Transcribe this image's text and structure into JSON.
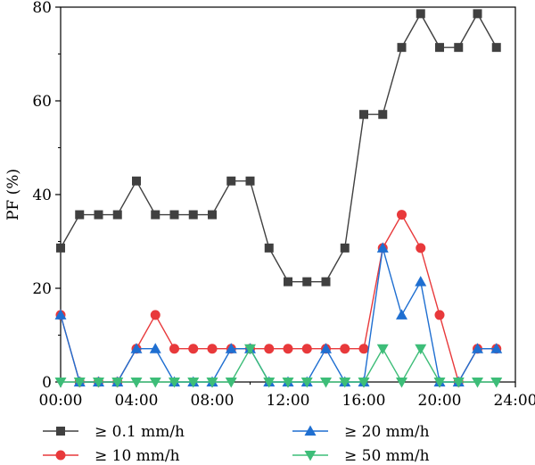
{
  "chart_data": {
    "type": "line",
    "title": "",
    "xlabel": "",
    "ylabel": "PF (%)",
    "xlim": [
      0,
      24
    ],
    "ylim": [
      0,
      80
    ],
    "x_ticks": [
      0,
      4,
      8,
      12,
      16,
      20,
      24
    ],
    "x_tick_labels": [
      "00:00",
      "04:00",
      "08:00",
      "12:00",
      "16:00",
      "20:00",
      "24:00"
    ],
    "y_ticks": [
      0,
      20,
      40,
      60,
      80
    ],
    "y_tick_labels": [
      "0",
      "20",
      "40",
      "60",
      "80"
    ],
    "grid": false,
    "legend_position": "bottom",
    "x": [
      0,
      1,
      2,
      3,
      4,
      5,
      6,
      7,
      8,
      9,
      10,
      11,
      12,
      13,
      14,
      15,
      16,
      17,
      18,
      19,
      20,
      21,
      22,
      23
    ],
    "series": [
      {
        "name": "≥ 0.1 mm/h",
        "color": "#404040",
        "marker": "square",
        "values": [
          28.6,
          35.7,
          35.7,
          35.7,
          42.9,
          35.7,
          35.7,
          35.7,
          35.7,
          42.9,
          42.9,
          28.6,
          21.4,
          21.4,
          21.4,
          28.6,
          57.1,
          57.1,
          71.4,
          78.6,
          71.4,
          71.4,
          78.6,
          71.4
        ]
      },
      {
        "name": "≥ 10 mm/h",
        "color": "#e8393b",
        "marker": "circle",
        "values": [
          14.3,
          0,
          0,
          0,
          7.1,
          14.3,
          7.1,
          7.1,
          7.1,
          7.1,
          7.1,
          7.1,
          7.1,
          7.1,
          7.1,
          7.1,
          7.1,
          28.6,
          35.7,
          28.6,
          14.3,
          0,
          7.1,
          7.1
        ]
      },
      {
        "name": "≥ 20 mm/h",
        "color": "#1f6fd1",
        "marker": "triangle-up",
        "values": [
          14.3,
          0,
          0,
          0,
          7.1,
          7.1,
          0,
          0,
          0,
          7.1,
          7.1,
          0,
          0,
          0,
          7.1,
          0,
          0,
          28.6,
          14.3,
          21.4,
          0,
          0,
          7.1,
          7.1
        ]
      },
      {
        "name": "≥ 50 mm/h",
        "color": "#3dbd78",
        "marker": "triangle-down",
        "values": [
          0,
          0,
          0,
          0,
          0,
          0,
          0,
          0,
          0,
          0,
          7.1,
          0,
          0,
          0,
          0,
          0,
          0,
          7.1,
          0,
          7.1,
          0,
          0,
          0,
          0
        ]
      }
    ]
  }
}
